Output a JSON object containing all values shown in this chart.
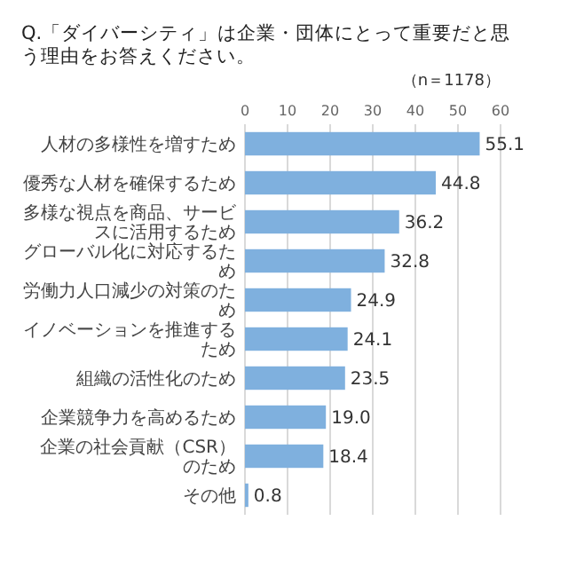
{
  "chart_data": {
    "type": "bar",
    "orientation": "horizontal",
    "title": "Q.「ダイバーシティ」は企業・団体にとって重要だと思う理由をお答えください。",
    "subtitle": "（n＝1178）",
    "categories": [
      "人材の多様性を増すため",
      "優秀な人材を確保するため",
      "多様な視点を商品、サービスに活用するため",
      "グローバル化に対応するため",
      "労働力人口減少の対策のため",
      "イノベーションを推進するため",
      "組織の活性化のため",
      "企業競争力を高めるため",
      "企業の社会貢献（CSR）のため",
      "その他"
    ],
    "values": [
      55.1,
      44.8,
      36.2,
      32.8,
      24.9,
      24.1,
      23.5,
      19.0,
      18.4,
      0.8
    ],
    "value_labels": [
      "55.1",
      "44.8",
      "36.2",
      "32.8",
      "24.9",
      "24.1",
      "23.5",
      "19.0",
      "18.4",
      "0.8"
    ],
    "color": "#7fb0de",
    "xlim": [
      0,
      60
    ],
    "xticks": [
      0,
      10,
      20,
      30,
      40,
      50,
      60
    ],
    "grid": "x"
  }
}
